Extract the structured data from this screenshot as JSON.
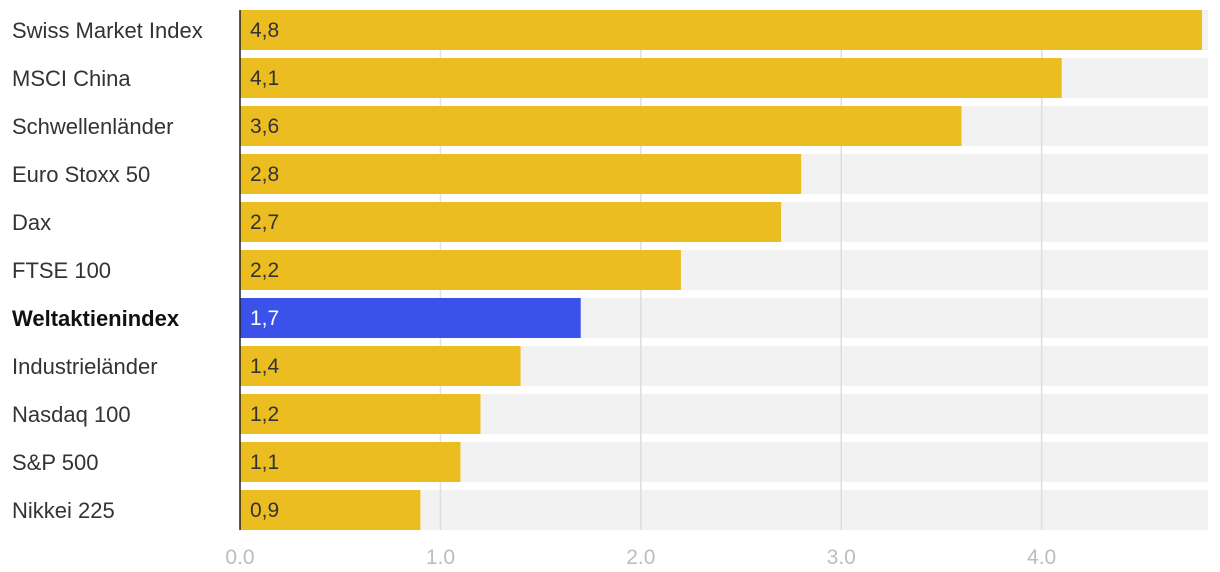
{
  "chart_data": {
    "type": "bar",
    "orientation": "horizontal",
    "title": "",
    "xlabel": "",
    "ylabel": "",
    "categories": [
      "Swiss Market Index",
      "MSCI China",
      "Schwellenländer",
      "Euro Stoxx 50",
      "Dax",
      "FTSE 100",
      "Weltaktienindex",
      "Industrieländer",
      "Nasdaq 100",
      "S&P 500",
      "Nikkei 225"
    ],
    "values": [
      4.8,
      4.1,
      3.6,
      2.8,
      2.7,
      2.2,
      1.7,
      1.4,
      1.2,
      1.1,
      0.9
    ],
    "value_labels": [
      "4,8",
      "4,1",
      "3,6",
      "2,8",
      "2,7",
      "2,2",
      "1,7",
      "1,4",
      "1,2",
      "1,1",
      "0,9"
    ],
    "highlight_category": "Weltaktienindex",
    "xlim": [
      0,
      4.83
    ],
    "xticks": [
      0,
      1,
      2,
      3,
      4
    ],
    "xtick_labels": [
      "0.0",
      "1.0",
      "2.0",
      "3.0",
      "4.0"
    ],
    "grid": true,
    "colors": {
      "bar": "#ebbd21",
      "highlight": "#3a52ea",
      "track": "#f2f2f2",
      "grid": "#dddddd",
      "axis": "#222222"
    }
  }
}
